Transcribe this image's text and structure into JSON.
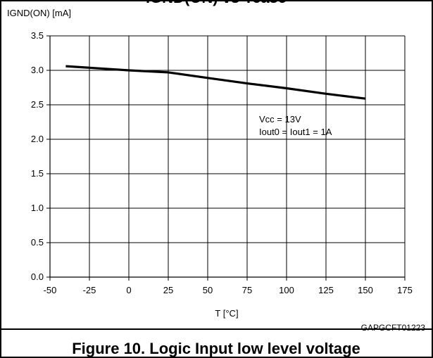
{
  "figure": {
    "reference_code": "GAPGCFT01223",
    "caption": "Figure 10. Logic Input low level voltage",
    "partial_top_title": "IGND(ON) vs Tcase"
  },
  "chart_data": {
    "type": "line",
    "title": "IGND(ON) vs Tcase",
    "ylabel": "IGND(ON) [mA]",
    "xlabel": "T [°C]",
    "xlim": [
      -50,
      175
    ],
    "ylim": [
      0.0,
      3.5
    ],
    "x_ticks": [
      -50,
      -25,
      0,
      25,
      50,
      75,
      100,
      125,
      150,
      175
    ],
    "x_tick_labels": [
      "-50",
      "-25",
      "0",
      "25",
      "50",
      "75",
      "100",
      "125",
      "150",
      "175"
    ],
    "y_ticks": [
      0.0,
      0.5,
      1.0,
      1.5,
      2.0,
      2.5,
      3.0,
      3.5
    ],
    "y_tick_labels": [
      "0.0",
      "0.5",
      "1.0",
      "1.5",
      "2.0",
      "2.5",
      "3.0",
      "3.5"
    ],
    "grid": true,
    "series": [
      {
        "x": [
          -40,
          0,
          25,
          50,
          75,
          100,
          125,
          150
        ],
        "values": [
          3.06,
          3.0,
          2.97,
          2.89,
          2.81,
          2.74,
          2.66,
          2.59
        ],
        "color": "#000000"
      }
    ],
    "annotations": [
      "Vcc = 13V",
      "Iout0 = Iout1 = 1A"
    ]
  }
}
